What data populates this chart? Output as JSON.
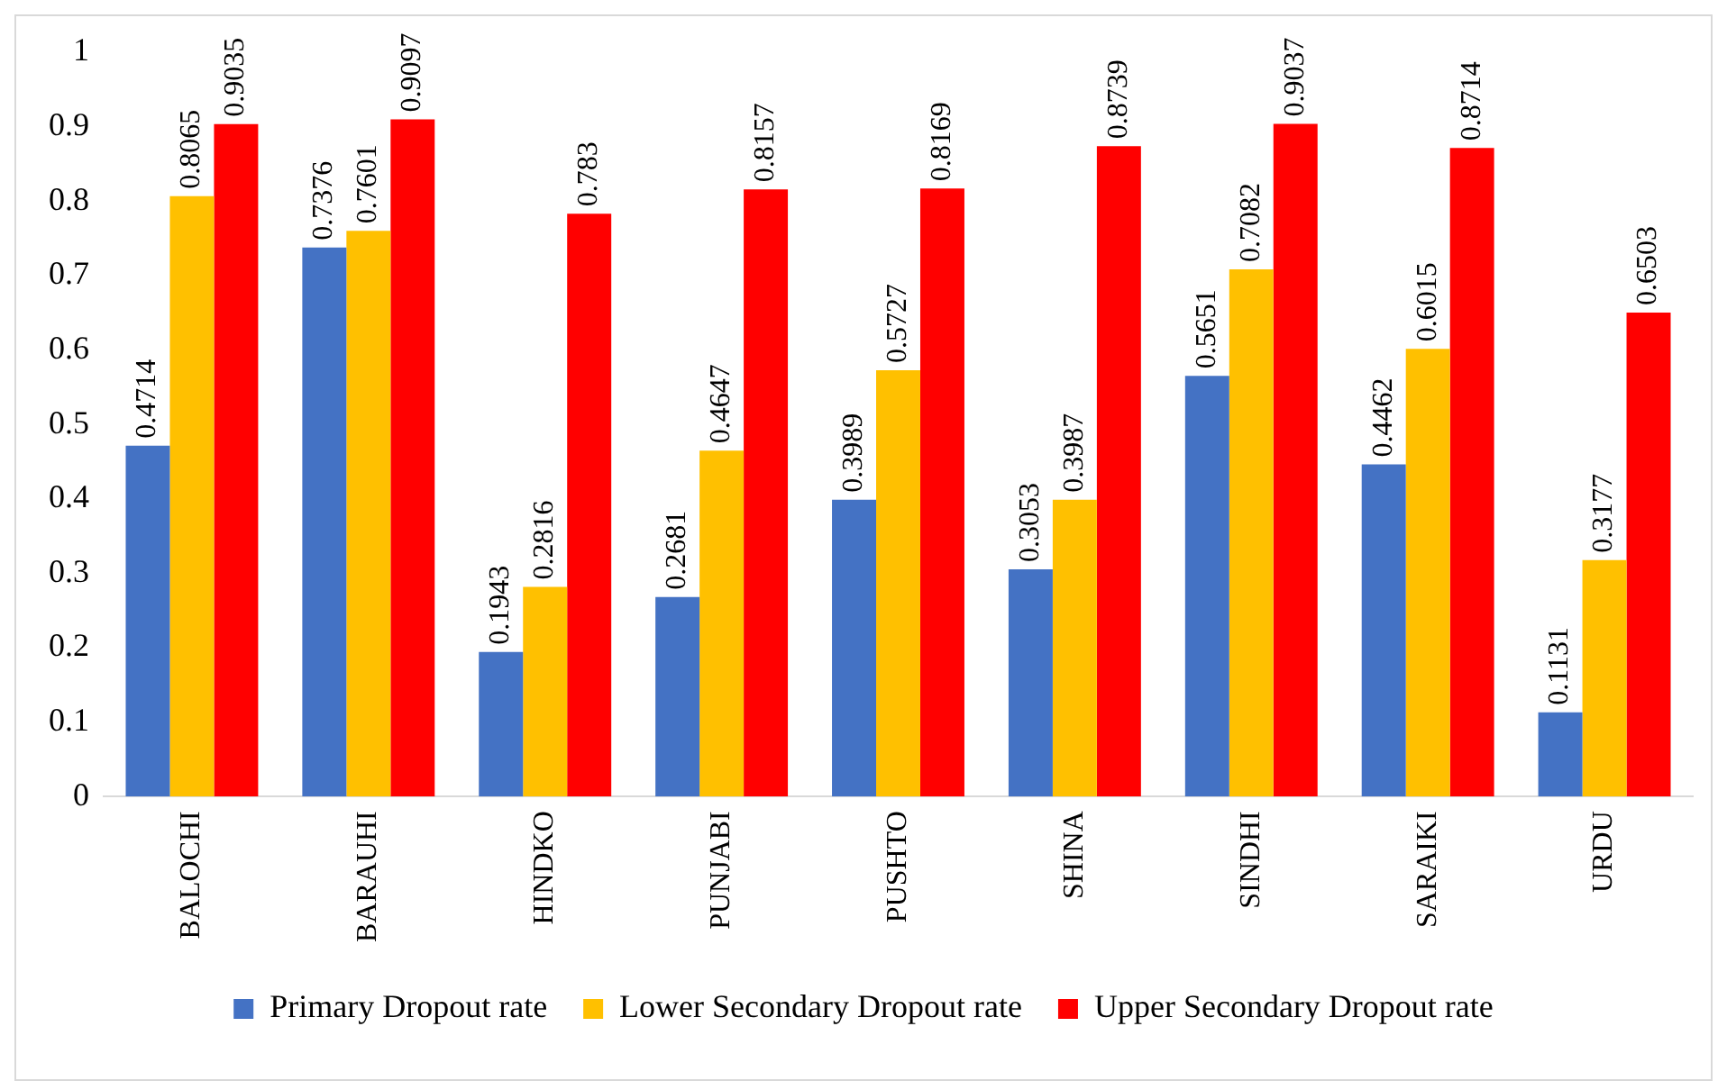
{
  "chart_data": {
    "type": "bar",
    "categories": [
      "BALOCHI",
      "BARAUHI",
      "HINDKO",
      "PUNJABI",
      "PUSHTO",
      "SHINA",
      "SINDHI",
      "SARAIKI",
      "URDU"
    ],
    "series": [
      {
        "name": "Primary Dropout rate",
        "color": "#4472c4",
        "values": [
          0.4714,
          0.7376,
          0.1943,
          0.2681,
          0.3989,
          0.3053,
          0.5651,
          0.4462,
          0.1131
        ]
      },
      {
        "name": "Lower Secondary Dropout rate",
        "color": "#ffc000",
        "values": [
          0.8065,
          0.7601,
          0.2816,
          0.4647,
          0.5727,
          0.3987,
          0.7082,
          0.6015,
          0.3177
        ]
      },
      {
        "name": "Upper Secondary Dropout rate",
        "color": "#ff0000",
        "values": [
          0.9035,
          0.9097,
          0.783,
          0.8157,
          0.8169,
          0.8739,
          0.9037,
          0.8714,
          0.6503
        ]
      }
    ],
    "ylim": [
      0,
      1
    ],
    "yticks": [
      0,
      0.1,
      0.2,
      0.3,
      0.4,
      0.5,
      0.6,
      0.7,
      0.8,
      0.9,
      1
    ],
    "grid": false,
    "legend": "bottom",
    "data_labels": true
  }
}
